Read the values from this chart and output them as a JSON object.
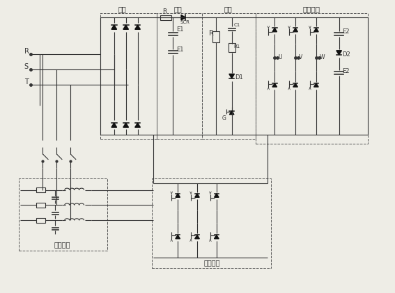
{
  "bg_color": "#eeede6",
  "line_color": "#333333",
  "labels": {
    "zhengliu": "整流",
    "lübo": "濾波",
    "shache": "剎車",
    "zhengchang_nibian": "正常逆變",
    "huigui_nibian": "回饋逆變",
    "shuchu_lübo": "輸出濾波",
    "R_label": "R",
    "SCR_label": "SCR",
    "E1_top": "E1",
    "E1_bot": "E1",
    "E2_top": "E2",
    "E2_bot": "E2",
    "D1": "D1",
    "D2": "D2",
    "C1": "C1",
    "R_brake": "R",
    "R1": "R1",
    "G": "G",
    "U": "U",
    "V": "V",
    "W": "W"
  }
}
